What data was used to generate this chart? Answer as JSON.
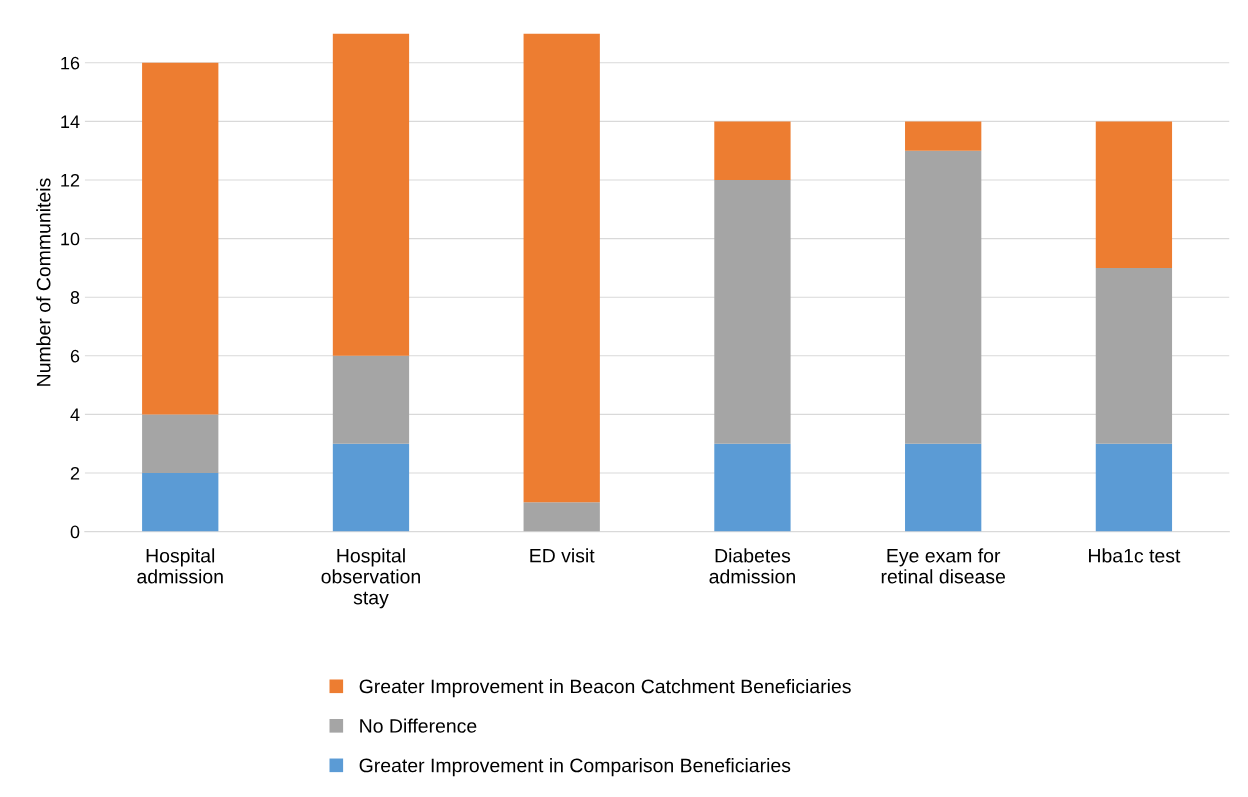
{
  "chart_data": {
    "type": "bar",
    "stacked": true,
    "ylabel": "Number of Communiteis",
    "categories": [
      "Hospital\nadmission",
      "Hospital\nobservation\nstay",
      "ED visit",
      "Diabetes\nadmission",
      "Eye exam for\nretinal disease",
      "Hba1c test"
    ],
    "series": [
      {
        "name": "Greater Improvement in Comparison Beneficiaries",
        "color": "#5b9bd5",
        "values": [
          2,
          3,
          0,
          3,
          3,
          3
        ]
      },
      {
        "name": "No Difference",
        "color": "#a5a5a5",
        "values": [
          2,
          3,
          1,
          9,
          10,
          6
        ]
      },
      {
        "name": "Greater Improvement in Beacon Catchment Beneficiaries",
        "color": "#ed7d31",
        "values": [
          12,
          11,
          16,
          2,
          1,
          5
        ]
      }
    ],
    "ylim": [
      0,
      17
    ],
    "yticks": [
      0,
      2,
      4,
      6,
      8,
      10,
      12,
      14,
      16
    ],
    "grid": "y",
    "legend": "bottom"
  }
}
